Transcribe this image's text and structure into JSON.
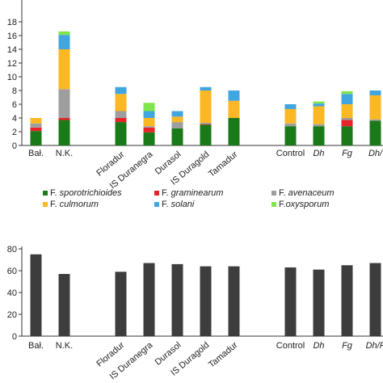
{
  "colors": {
    "axis": "#333333",
    "bar_bottom": "#3d3d3d"
  },
  "chart_data": [
    {
      "type": "bar",
      "stacked": true,
      "title": "",
      "xlabel": "",
      "ylabel": "",
      "ylim": [
        0,
        18
      ],
      "yticks": [
        0,
        2,
        4,
        6,
        8,
        10,
        12,
        14,
        16,
        18
      ],
      "grid": false,
      "legend_position": "bottom",
      "categories": [
        {
          "label": "Bał.",
          "italic": false
        },
        {
          "label": "N.K.",
          "italic": false
        },
        {
          "label": "",
          "italic": false
        },
        {
          "label": "Floradur",
          "italic": false
        },
        {
          "label": "IS Duranegra",
          "italic": false
        },
        {
          "label": "Durasol",
          "italic": false
        },
        {
          "label": "IS Duragold",
          "italic": false
        },
        {
          "label": "Tamadur",
          "italic": false
        },
        {
          "label": "",
          "italic": false
        },
        {
          "label": "Control",
          "italic": false
        },
        {
          "label": "Dh",
          "italic": true
        },
        {
          "label": "Fg",
          "italic": true
        },
        {
          "label": "Dh/",
          "italic": true
        }
      ],
      "series": [
        {
          "name": "F. sporotrichioides",
          "prefix": "F. ",
          "species": "sporotrichioides",
          "color": "#1a7a1a",
          "values": [
            2.1,
            3.7,
            null,
            3.4,
            1.9,
            2.5,
            3.0,
            4.0,
            null,
            2.8,
            2.8,
            2.8,
            3.6
          ]
        },
        {
          "name": "F. graminearum",
          "prefix": "F. ",
          "species": "graminearum",
          "color": "#e8242a",
          "values": [
            0.5,
            0.3,
            null,
            0.6,
            0.7,
            0.0,
            0.1,
            0.0,
            null,
            0.0,
            0.0,
            0.9,
            0.0
          ]
        },
        {
          "name": "F. avenaceum",
          "prefix": "F. ",
          "species": "avenaceum",
          "color": "#9e9e9e",
          "values": [
            0.6,
            4.2,
            null,
            1.0,
            0.2,
            0.9,
            0.2,
            0.0,
            null,
            0.4,
            0.3,
            0.3,
            0.2
          ]
        },
        {
          "name": "F. culmorum",
          "prefix": "F. ",
          "species": "culmorum",
          "color": "#fbb724",
          "values": [
            0.8,
            5.8,
            null,
            2.5,
            1.2,
            0.8,
            4.7,
            2.5,
            null,
            2.1,
            2.6,
            2.0,
            3.5
          ]
        },
        {
          "name": "F. solani",
          "prefix": "F. ",
          "species": "solani",
          "color": "#41a6e0",
          "values": [
            0.0,
            2.1,
            null,
            1.0,
            1.0,
            0.8,
            0.5,
            1.5,
            null,
            0.7,
            0.4,
            1.5,
            0.7
          ]
        },
        {
          "name": "F.oxysporum",
          "prefix": "F.",
          "species": "oxysporum",
          "color": "#7ee64a",
          "values": [
            0.0,
            0.5,
            null,
            0.0,
            1.2,
            0.0,
            0.0,
            0.0,
            null,
            0.0,
            0.3,
            0.4,
            0.0
          ]
        }
      ]
    },
    {
      "type": "bar",
      "title": "",
      "xlabel": "",
      "ylabel": "",
      "ylim": [
        0,
        80
      ],
      "yticks": [
        0,
        20,
        40,
        60,
        80
      ],
      "grid": false,
      "categories": [
        {
          "label": "Bał.",
          "italic": false
        },
        {
          "label": "N.K.",
          "italic": false
        },
        {
          "label": "",
          "italic": false
        },
        {
          "label": "Floradur",
          "italic": false
        },
        {
          "label": "IS Duranegra",
          "italic": false
        },
        {
          "label": "Durasol",
          "italic": false
        },
        {
          "label": "IS Duragold",
          "italic": false
        },
        {
          "label": "Tamadur",
          "italic": false
        },
        {
          "label": "",
          "italic": false
        },
        {
          "label": "Control",
          "italic": false
        },
        {
          "label": "Dh",
          "italic": true
        },
        {
          "label": "Fg",
          "italic": true
        },
        {
          "label": "Dh/F",
          "italic": true
        }
      ],
      "values": [
        75,
        57,
        null,
        59,
        67,
        66,
        64,
        64,
        null,
        63,
        61,
        65,
        67
      ]
    }
  ]
}
